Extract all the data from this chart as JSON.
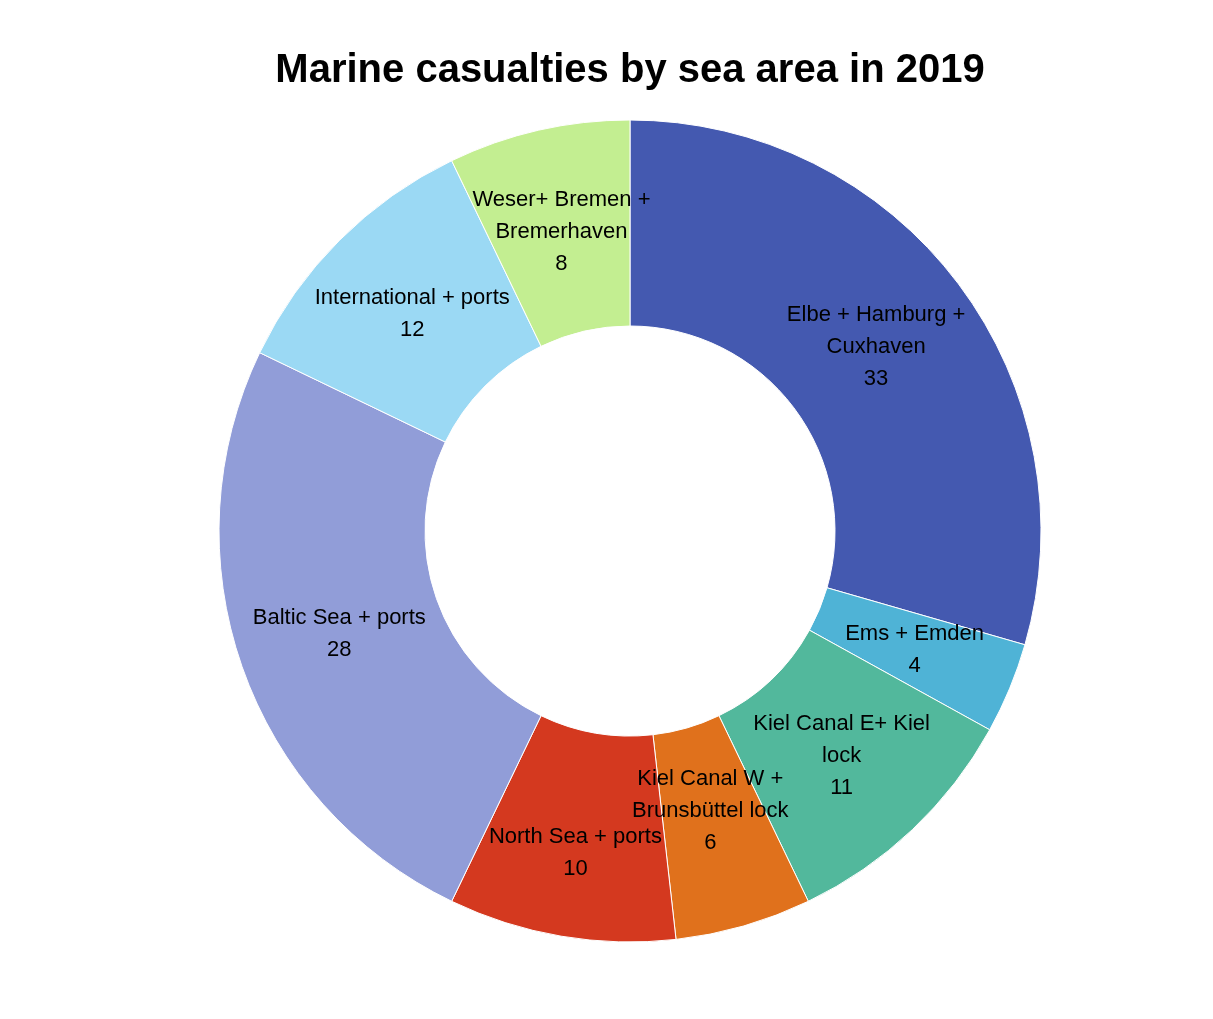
{
  "chart_data": {
    "type": "donut",
    "title": "Marine casualties by sea area in 2019",
    "categories": [
      "Elbe + Hamburg + Cuxhaven",
      "Ems + Emden",
      "Kiel Canal E+ Kiel lock",
      "Kiel Canal W + Brunsbüttel lock",
      "North Sea + ports",
      "Baltic Sea + ports",
      "International + ports",
      "Weser+ Bremen + Bremerhaven"
    ],
    "values": [
      33,
      4,
      11,
      6,
      10,
      28,
      12,
      8
    ],
    "colors": [
      "#4459b0",
      "#4fb3d6",
      "#52b89c",
      "#e0711c",
      "#d4391f",
      "#919dd8",
      "#9bd9f4",
      "#c3ee91"
    ],
    "data_labels": true
  }
}
